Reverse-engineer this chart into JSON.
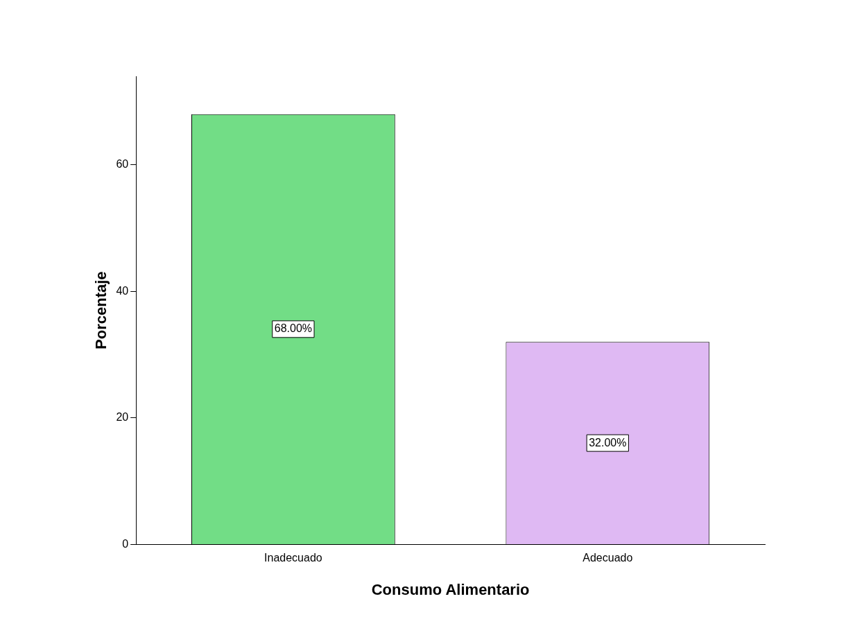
{
  "chart_data": {
    "type": "bar",
    "xlabel": "Consumo Alimentario",
    "ylabel": "Porcentaje",
    "categories": [
      "Inadecuado",
      "Adecuado"
    ],
    "values": [
      68,
      32
    ],
    "colors": [
      "#72dd86",
      "#dfb9f3"
    ],
    "value_labels": [
      "68.00%",
      "32.00%"
    ],
    "ylim": [
      0,
      74
    ],
    "yticks": [
      0,
      20,
      40,
      60
    ],
    "legend": false
  }
}
